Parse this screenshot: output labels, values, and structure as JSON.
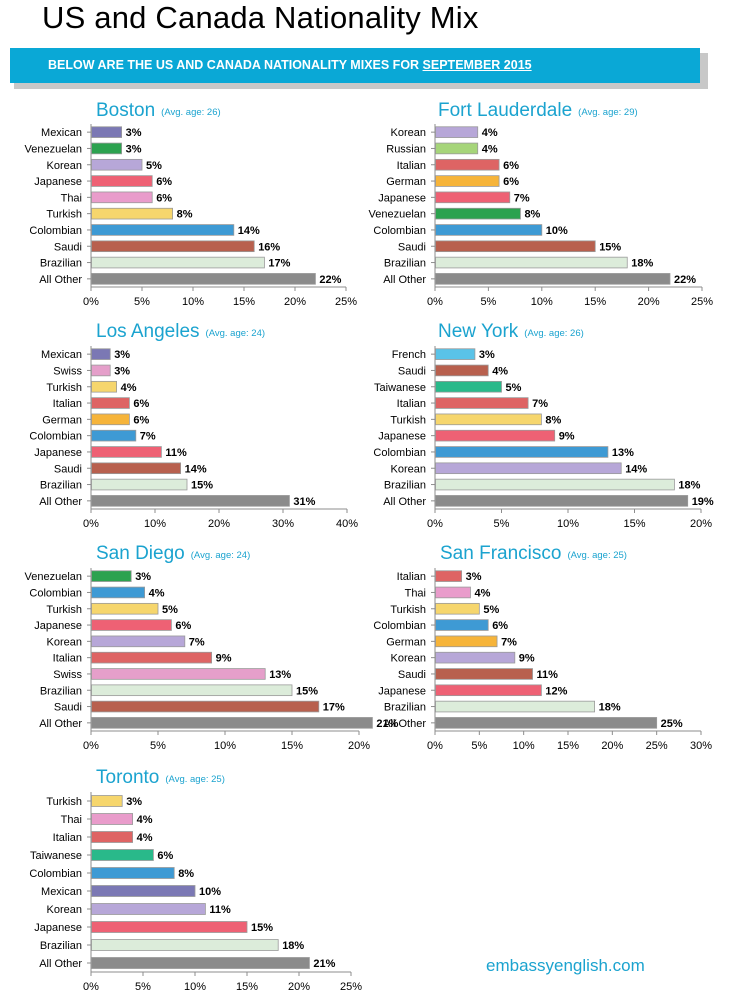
{
  "page_title": "US and Canada Nationality Mix",
  "banner": {
    "text": "BELOW ARE THE US AND CANADA NATIONALITY MIXES FOR ",
    "month": "SEPTEMBER 2015"
  },
  "footer": "embassyenglish.com",
  "palette": {
    "Mexican": "#7b78b4",
    "Venezuelan": "#2ca24f",
    "Korean": "#b7a7d8",
    "Japanese": "#ee6174",
    "Thai": "#e99ccb",
    "Turkish": "#f6d66d",
    "Colombian": "#3e9ad4",
    "Saudi": "#b8604e",
    "Brazilian": "#dcecda",
    "All Other": "#8b8b8b",
    "Russian": "#a6d57a",
    "Italian": "#de6464",
    "German": "#f6b43a",
    "Swiss": "#e59fca",
    "French": "#5ac3e8",
    "Taiwanese": "#29b98a"
  },
  "chart_data": [
    {
      "type": "bar",
      "orientation": "horizontal",
      "title": "Boston",
      "subtitle": "(Avg. age: 26)",
      "categories": [
        "Mexican",
        "Venezuelan",
        "Korean",
        "Japanese",
        "Thai",
        "Turkish",
        "Colombian",
        "Saudi",
        "Brazilian",
        "All Other"
      ],
      "values": [
        3,
        3,
        5,
        6,
        6,
        8,
        14,
        16,
        17,
        22
      ],
      "xlim": [
        0,
        25
      ],
      "ticks": [
        0,
        5,
        10,
        15,
        20,
        25
      ],
      "value_suffix": "%",
      "xlabel": "",
      "ylabel": ""
    },
    {
      "type": "bar",
      "orientation": "horizontal",
      "title": "Fort Lauderdale",
      "subtitle": "(Avg. age: 29)",
      "categories": [
        "Korean",
        "Russian",
        "Italian",
        "German",
        "Japanese",
        "Venezuelan",
        "Colombian",
        "Saudi",
        "Brazilian",
        "All Other"
      ],
      "values": [
        4,
        4,
        6,
        6,
        7,
        8,
        10,
        15,
        18,
        22
      ],
      "xlim": [
        0,
        25
      ],
      "ticks": [
        0,
        5,
        10,
        15,
        20,
        25
      ],
      "value_suffix": "%",
      "xlabel": "",
      "ylabel": ""
    },
    {
      "type": "bar",
      "orientation": "horizontal",
      "title": "Los Angeles",
      "subtitle": "(Avg. age: 24)",
      "categories": [
        "Mexican",
        "Swiss",
        "Turkish",
        "Italian",
        "German",
        "Colombian",
        "Japanese",
        "Saudi",
        "Brazilian",
        "All Other"
      ],
      "values": [
        3,
        3,
        4,
        6,
        6,
        7,
        11,
        14,
        15,
        31
      ],
      "xlim": [
        0,
        40
      ],
      "ticks": [
        0,
        10,
        20,
        30,
        40
      ],
      "value_suffix": "%",
      "xlabel": "",
      "ylabel": ""
    },
    {
      "type": "bar",
      "orientation": "horizontal",
      "title": "New York",
      "subtitle": "(Avg. age: 26)",
      "categories": [
        "French",
        "Saudi",
        "Taiwanese",
        "Italian",
        "Turkish",
        "Japanese",
        "Colombian",
        "Korean",
        "Brazilian",
        "All Other"
      ],
      "values": [
        3,
        4,
        5,
        7,
        8,
        9,
        13,
        14,
        18,
        19
      ],
      "xlim": [
        0,
        20
      ],
      "ticks": [
        0,
        5,
        10,
        15,
        20
      ],
      "value_suffix": "%",
      "xlabel": "",
      "ylabel": ""
    },
    {
      "type": "bar",
      "orientation": "horizontal",
      "title": "San Diego",
      "subtitle": "(Avg. age: 24)",
      "categories": [
        "Venezuelan",
        "Colombian",
        "Turkish",
        "Japanese",
        "Korean",
        "Italian",
        "Swiss",
        "Brazilian",
        "Saudi",
        "All Other"
      ],
      "values": [
        3,
        4,
        5,
        6,
        7,
        9,
        13,
        15,
        17,
        21
      ],
      "xlim": [
        0,
        20
      ],
      "ticks": [
        0,
        5,
        10,
        15,
        20
      ],
      "value_suffix": "%",
      "xlabel": "",
      "ylabel": ""
    },
    {
      "type": "bar",
      "orientation": "horizontal",
      "title": "San Francisco",
      "subtitle": "(Avg. age: 25)",
      "categories": [
        "Italian",
        "Thai",
        "Turkish",
        "Colombian",
        "German",
        "Korean",
        "Saudi",
        "Japanese",
        "Brazilian",
        "All Other"
      ],
      "values": [
        3,
        4,
        5,
        6,
        7,
        9,
        11,
        12,
        18,
        25
      ],
      "xlim": [
        0,
        30
      ],
      "ticks": [
        0,
        5,
        10,
        15,
        20,
        25,
        30
      ],
      "value_suffix": "%",
      "xlabel": "",
      "ylabel": ""
    },
    {
      "type": "bar",
      "orientation": "horizontal",
      "title": "Toronto",
      "subtitle": "(Avg. age: 25)",
      "categories": [
        "Turkish",
        "Thai",
        "Italian",
        "Taiwanese",
        "Colombian",
        "Mexican",
        "Korean",
        "Japanese",
        "Brazilian",
        "All Other"
      ],
      "values": [
        3,
        4,
        4,
        6,
        8,
        10,
        11,
        15,
        18,
        21
      ],
      "xlim": [
        0,
        25
      ],
      "ticks": [
        0,
        5,
        10,
        15,
        20,
        25
      ],
      "value_suffix": "%",
      "xlabel": "",
      "ylabel": ""
    }
  ]
}
